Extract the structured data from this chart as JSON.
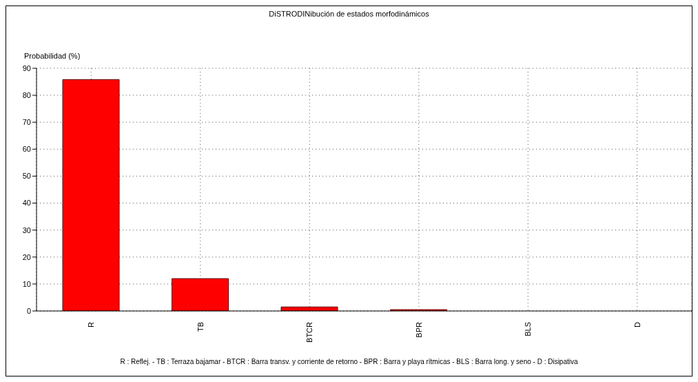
{
  "chart_data": {
    "type": "bar",
    "title": "DiSTRODINibución de estados morfodinámicos",
    "ylabel": "Probabilidad (%)",
    "categories": [
      "R",
      "TB",
      "BTCR",
      "BPR",
      "BLS",
      "D"
    ],
    "values": [
      85.8,
      12,
      1.5,
      0.5,
      0,
      0
    ],
    "color": "#ff0000",
    "ylim": [
      0,
      90
    ],
    "yticks": [
      0,
      10,
      20,
      30,
      40,
      50,
      60,
      70,
      80,
      90
    ],
    "grid": true,
    "annotations": [
      "R : Reflej. - TB : Terraza bajamar - BTCR : Barra transv. y corriente de retorno - BPR : Barra y playa rítmicas - BLS : Barra long. y seno - D : Disipativa"
    ]
  }
}
